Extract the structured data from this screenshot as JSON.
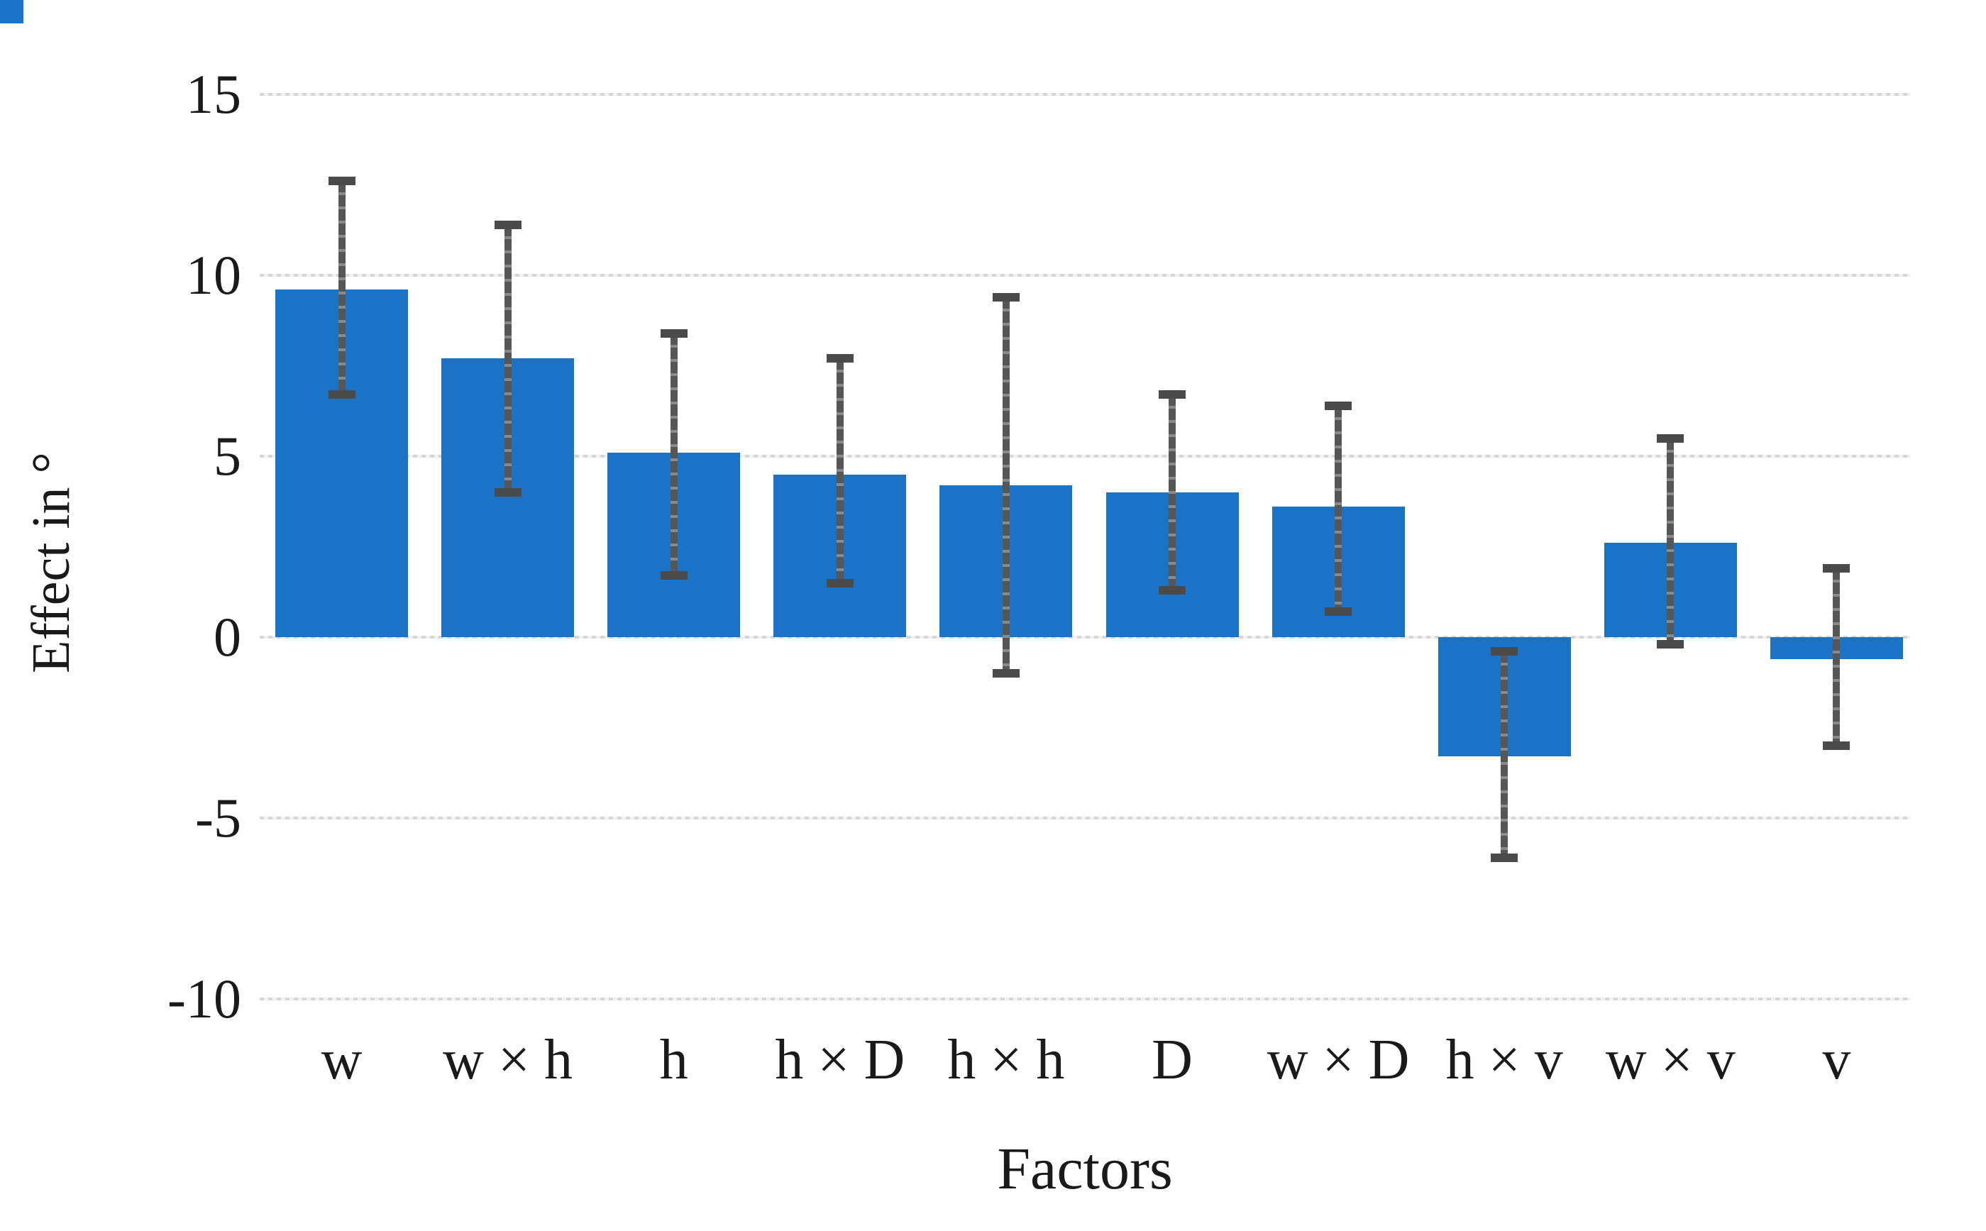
{
  "colors": {
    "bar_fill": "#1b73c8",
    "error_bar": "#4a4a4a",
    "gridline": "#d6d6d6",
    "text": "#1a1a1a",
    "background": "#ffffff"
  },
  "chart_data": {
    "type": "bar",
    "title": "",
    "xlabel": "Factors",
    "ylabel": "Effect in °",
    "categories": [
      "w",
      "w × h",
      "h",
      "h × D",
      "h × h",
      "D",
      "w × D",
      "h × v",
      "w × v",
      "v"
    ],
    "values": [
      9.6,
      7.7,
      5.1,
      4.5,
      4.2,
      4.0,
      3.6,
      -3.3,
      2.6,
      -0.6
    ],
    "error_high": [
      12.6,
      11.4,
      8.4,
      7.7,
      9.4,
      6.7,
      6.4,
      -0.4,
      5.5,
      1.9
    ],
    "error_low": [
      6.7,
      4.0,
      1.7,
      1.5,
      -1.0,
      1.3,
      0.7,
      -6.1,
      -0.2,
      -3.0
    ],
    "yticks": [
      15,
      10,
      5,
      0,
      -5,
      -10
    ],
    "ylim": [
      -11.5,
      16.5
    ],
    "grid": true,
    "legend": false,
    "error_bars": true
  }
}
